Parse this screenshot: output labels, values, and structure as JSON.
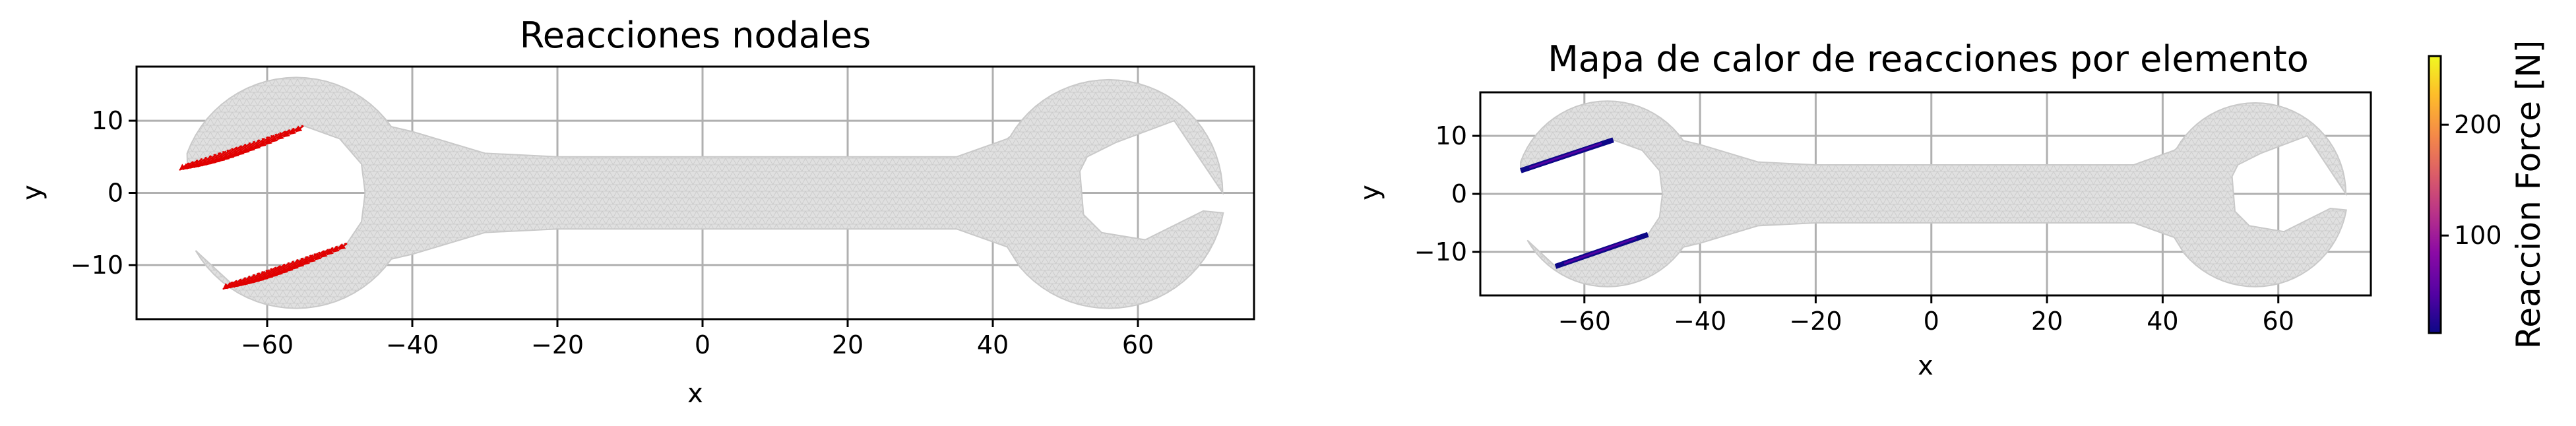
{
  "colors": {
    "mesh_fill": "#d9d9d9",
    "mesh_line": "#c6c6c6",
    "reaction_arrow": "#e00000",
    "grid": "#b0b0b0",
    "colormap": [
      "#0d0887",
      "#5302a3",
      "#8b0aa5",
      "#b83289",
      "#db5c68",
      "#f48849",
      "#febd2a",
      "#f0f921"
    ]
  },
  "chart_data": [
    {
      "type": "mesh-quiver",
      "title": "Reacciones nodales",
      "xlabel": "x",
      "ylabel": "y",
      "xlim": [
        -78,
        76
      ],
      "ylim": [
        -17.5,
        17.5
      ],
      "xticks": [
        -60,
        -40,
        -20,
        0,
        20,
        40,
        60
      ],
      "xticklabels": [
        "−60",
        "−40",
        "−20",
        "0",
        "20",
        "40",
        "60"
      ],
      "yticks": [
        -10,
        0,
        10
      ],
      "yticklabels": [
        "−10",
        "0",
        "10"
      ],
      "grid": true,
      "supports": [
        {
          "from": [
            -71,
            4
          ],
          "to": [
            -55,
            9.3
          ],
          "arrow_dir": [
            -1,
            -1
          ]
        },
        {
          "from": [
            -65,
            -12.5
          ],
          "to": [
            -49,
            -7
          ],
          "arrow_dir": [
            -1,
            -1
          ]
        }
      ]
    },
    {
      "type": "mesh-heatmap",
      "title": "Mapa de calor de reacciones por elemento",
      "xlabel": "x",
      "ylabel": "y",
      "xlim": [
        -78,
        76
      ],
      "ylim": [
        -17.5,
        17.5
      ],
      "xticks": [
        -60,
        -40,
        -20,
        0,
        20,
        40,
        60
      ],
      "xticklabels": [
        "−60",
        "−40",
        "−20",
        "0",
        "20",
        "40",
        "60"
      ],
      "yticks": [
        -10,
        0,
        10
      ],
      "yticklabels": [
        "−10",
        "0",
        "10"
      ],
      "grid": true,
      "colorbar": {
        "label": "Reaccion Force [N]",
        "range": [
          12,
          262
        ],
        "ticks": [
          100,
          200
        ],
        "ticklabels": [
          "100",
          "200"
        ],
        "colormap": "plasma"
      },
      "supports": [
        {
          "from": [
            -71,
            4
          ],
          "to": [
            -55,
            9.3
          ]
        },
        {
          "from": [
            -65,
            -12.5
          ],
          "to": [
            -49,
            -7
          ]
        }
      ]
    }
  ]
}
